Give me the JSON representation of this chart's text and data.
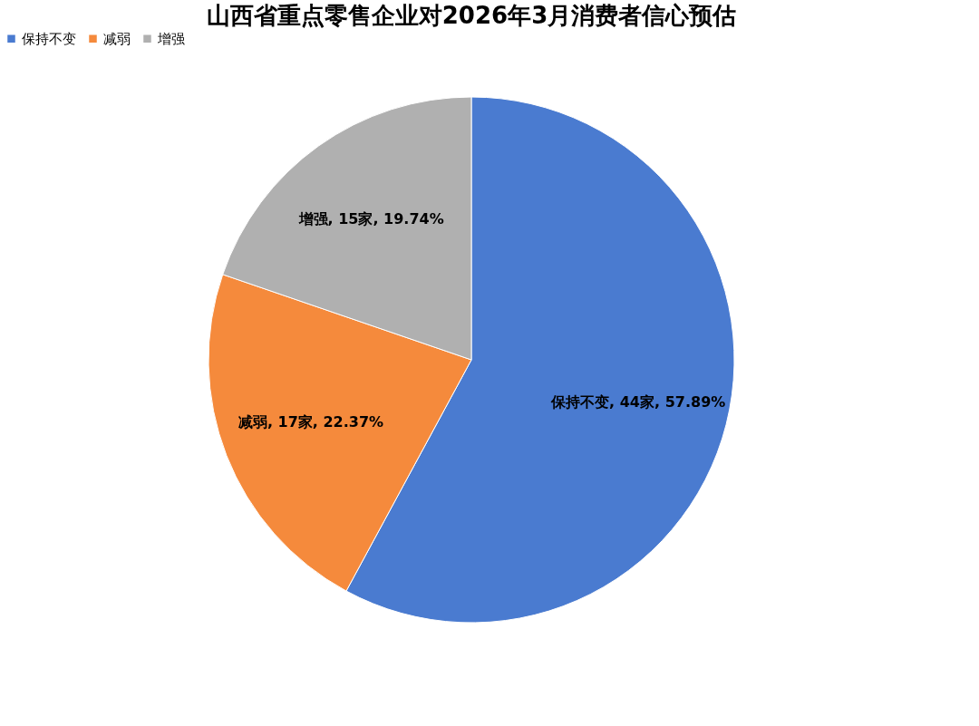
{
  "chart_data": {
    "type": "pie",
    "title": "山西省重点零售企业对2026年3月消费者信心预估",
    "categories": [
      "保持不变",
      "减弱",
      "增强"
    ],
    "values": [
      44,
      17,
      15
    ],
    "colors": [
      "#4a7bd0",
      "#f58a3c",
      "#b0b0b0"
    ],
    "value_labels": [
      "保持不变, 44家, 57.89%",
      "减弱, 17家, 22.37%",
      "增强, 15家, 19.74%"
    ],
    "legend": "top"
  }
}
